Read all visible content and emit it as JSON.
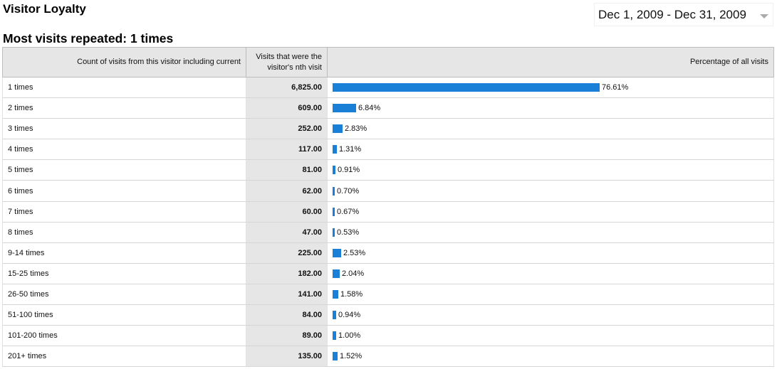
{
  "header": {
    "title": "Visitor Loyalty",
    "date_range": "Dec 1, 2009 - Dec 31, 2009",
    "subtitle": "Most visits repeated: 1 times"
  },
  "table": {
    "columns": {
      "count": "Count of visits from this visitor including current",
      "visits_line1": "Visits that were the",
      "visits_line2": "visitor's nth visit",
      "percent": "Percentage of all visits"
    },
    "rows": [
      {
        "label": "1 times",
        "visits": "6,825.00",
        "percent": "76.61%",
        "value": 76.61
      },
      {
        "label": "2 times",
        "visits": "609.00",
        "percent": "6.84%",
        "value": 6.84
      },
      {
        "label": "3 times",
        "visits": "252.00",
        "percent": "2.83%",
        "value": 2.83
      },
      {
        "label": "4 times",
        "visits": "117.00",
        "percent": "1.31%",
        "value": 1.31
      },
      {
        "label": "5 times",
        "visits": "81.00",
        "percent": "0.91%",
        "value": 0.91
      },
      {
        "label": "6 times",
        "visits": "62.00",
        "percent": "0.70%",
        "value": 0.7
      },
      {
        "label": "7 times",
        "visits": "60.00",
        "percent": "0.67%",
        "value": 0.67
      },
      {
        "label": "8 times",
        "visits": "47.00",
        "percent": "0.53%",
        "value": 0.53
      },
      {
        "label": "9-14 times",
        "visits": "225.00",
        "percent": "2.53%",
        "value": 2.53
      },
      {
        "label": "15-25 times",
        "visits": "182.00",
        "percent": "2.04%",
        "value": 2.04
      },
      {
        "label": "26-50 times",
        "visits": "141.00",
        "percent": "1.58%",
        "value": 1.58
      },
      {
        "label": "51-100 times",
        "visits": "84.00",
        "percent": "0.94%",
        "value": 0.94
      },
      {
        "label": "101-200 times",
        "visits": "89.00",
        "percent": "1.00%",
        "value": 1.0
      },
      {
        "label": "201+ times",
        "visits": "135.00",
        "percent": "1.52%",
        "value": 1.52
      }
    ]
  },
  "colors": {
    "bar": "#1a7fd6",
    "header_bg": "#e6e6e6"
  },
  "icons": {
    "date_dropdown": "chevron-down-icon"
  }
}
